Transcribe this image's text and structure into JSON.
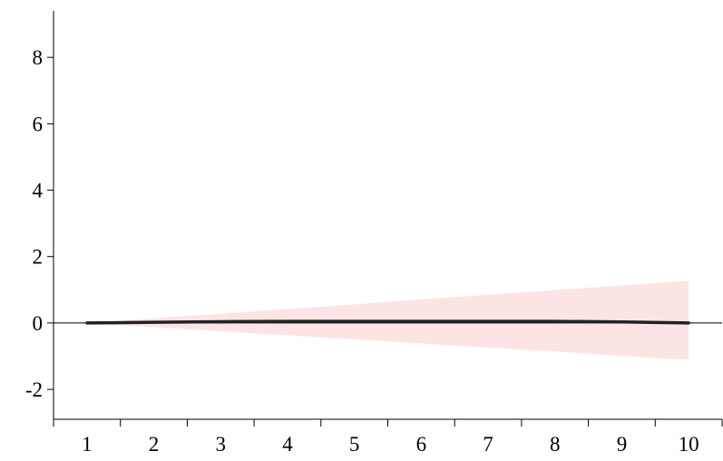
{
  "chart_data": {
    "type": "line",
    "title": "",
    "xlabel": "",
    "ylabel": "",
    "x": [
      1,
      2,
      3,
      4,
      5,
      6,
      7,
      8,
      9,
      10
    ],
    "xlim": [
      0.5,
      10.5
    ],
    "ylim": [
      -2.9,
      9.4
    ],
    "x_ticks": [
      "1",
      "2",
      "3",
      "4",
      "5",
      "6",
      "7",
      "8",
      "9",
      "10"
    ],
    "y_ticks": [
      "-2",
      "0",
      "2",
      "4",
      "6",
      "8"
    ],
    "y_tick_values": [
      -2,
      0,
      2,
      4,
      6,
      8
    ],
    "zero_line": true,
    "grid": false,
    "series": [
      {
        "role": "impulse-response",
        "values": [
          0.0,
          0.02,
          0.04,
          0.05,
          0.05,
          0.05,
          0.05,
          0.05,
          0.03,
          0.0
        ],
        "color": "#222222"
      },
      {
        "role": "confidence-band",
        "lower": [
          0.0,
          -0.13,
          -0.25,
          -0.37,
          -0.49,
          -0.62,
          -0.74,
          -0.86,
          -0.99,
          -1.11
        ],
        "upper": [
          0.0,
          0.14,
          0.28,
          0.42,
          0.56,
          0.71,
          0.85,
          0.99,
          1.13,
          1.27
        ],
        "color": "#fde4e4"
      }
    ]
  }
}
